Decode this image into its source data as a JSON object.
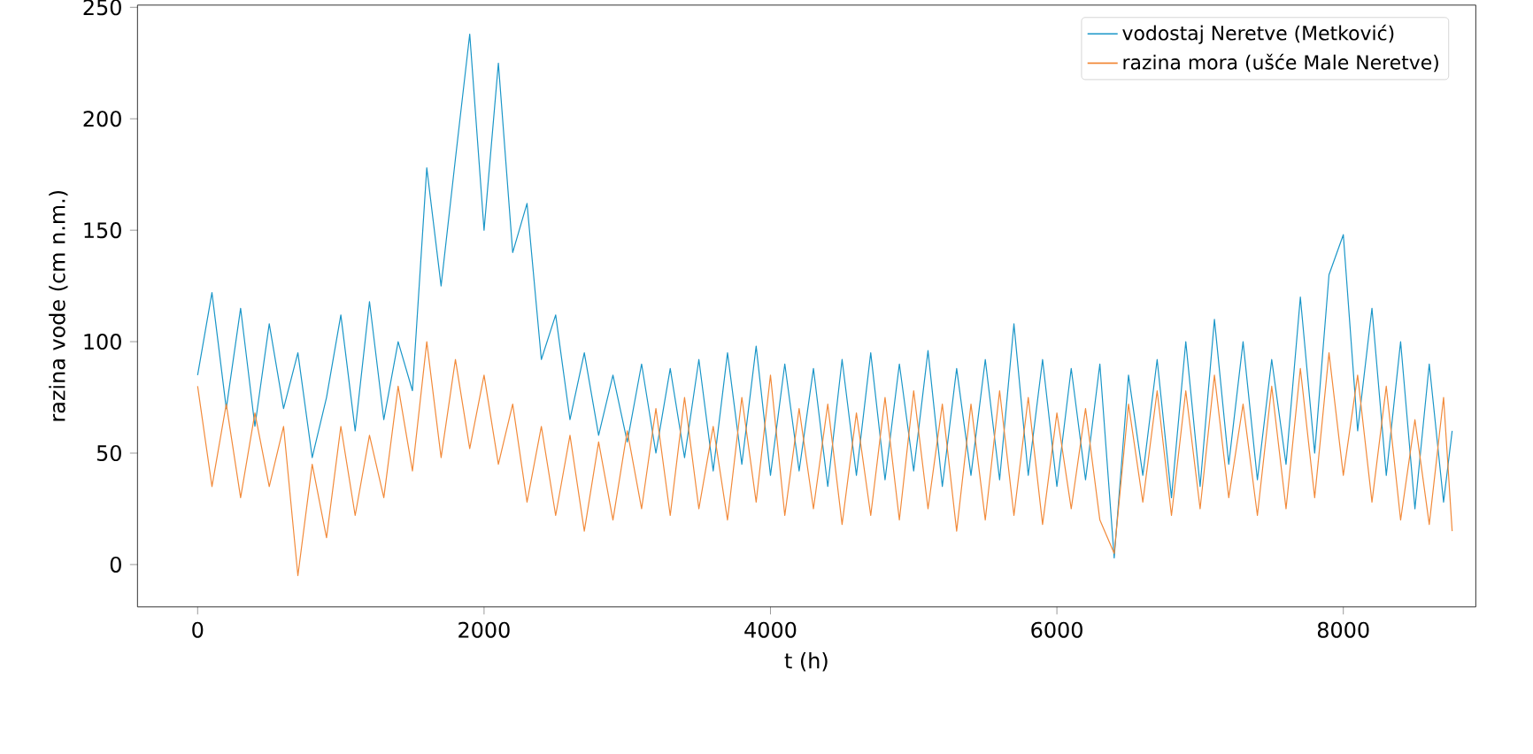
{
  "chart_data": {
    "type": "line",
    "xlabel": "t (h)",
    "ylabel": "razina vode (cm n.m.)",
    "x": [
      0,
      100,
      200,
      300,
      400,
      500,
      600,
      700,
      800,
      900,
      1000,
      1100,
      1200,
      1300,
      1400,
      1500,
      1600,
      1700,
      1800,
      1900,
      2000,
      2100,
      2200,
      2300,
      2400,
      2500,
      2600,
      2700,
      2800,
      2900,
      3000,
      3100,
      3200,
      3300,
      3400,
      3500,
      3600,
      3700,
      3800,
      3900,
      4000,
      4100,
      4200,
      4300,
      4400,
      4500,
      4600,
      4700,
      4800,
      4900,
      5000,
      5100,
      5200,
      5300,
      5400,
      5500,
      5600,
      5700,
      5800,
      5900,
      6000,
      6100,
      6200,
      6300,
      6400,
      6500,
      6600,
      6700,
      6800,
      6900,
      7000,
      7100,
      7200,
      7300,
      7400,
      7500,
      7600,
      7700,
      7800,
      7900,
      8000,
      8100,
      8200,
      8300,
      8400,
      8500,
      8600,
      8700,
      8760
    ],
    "series": [
      {
        "name": "vodostaj Neretve (Metković)",
        "color": "#1a96c8",
        "values": [
          85,
          122,
          70,
          115,
          62,
          108,
          70,
          95,
          48,
          75,
          112,
          60,
          118,
          65,
          100,
          78,
          178,
          125,
          182,
          238,
          150,
          225,
          140,
          162,
          92,
          112,
          65,
          95,
          58,
          85,
          55,
          90,
          50,
          88,
          48,
          92,
          42,
          95,
          45,
          98,
          40,
          90,
          42,
          88,
          35,
          92,
          40,
          95,
          38,
          90,
          42,
          96,
          35,
          88,
          40,
          92,
          38,
          108,
          40,
          92,
          35,
          88,
          38,
          90,
          3,
          85,
          40,
          92,
          30,
          100,
          35,
          110,
          45,
          100,
          38,
          92,
          45,
          120,
          50,
          130,
          148,
          60,
          115,
          40,
          100,
          25,
          90,
          28,
          60
        ]
      },
      {
        "name": "razina mora (ušće Male Neretve)",
        "color": "#f28a3a",
        "values": [
          80,
          35,
          72,
          30,
          68,
          35,
          62,
          -5,
          45,
          12,
          62,
          22,
          58,
          30,
          80,
          42,
          100,
          48,
          92,
          52,
          85,
          45,
          72,
          28,
          62,
          22,
          58,
          15,
          55,
          20,
          60,
          25,
          70,
          22,
          75,
          25,
          62,
          20,
          75,
          28,
          85,
          22,
          70,
          25,
          72,
          18,
          68,
          22,
          75,
          20,
          78,
          25,
          72,
          15,
          72,
          20,
          78,
          22,
          75,
          18,
          68,
          25,
          70,
          20,
          5,
          72,
          28,
          78,
          22,
          78,
          25,
          85,
          30,
          72,
          22,
          80,
          25,
          88,
          30,
          95,
          40,
          85,
          28,
          80,
          20,
          65,
          18,
          75,
          15
        ]
      }
    ],
    "xlim": [
      -420,
      8925
    ],
    "ylim": [
      -19,
      251
    ],
    "xticks": [
      0,
      2000,
      4000,
      6000,
      8000
    ],
    "yticks": [
      0,
      50,
      100,
      150,
      200,
      250
    ],
    "grid": false,
    "legend": "top right",
    "marker": "none",
    "line_style": "solid"
  }
}
